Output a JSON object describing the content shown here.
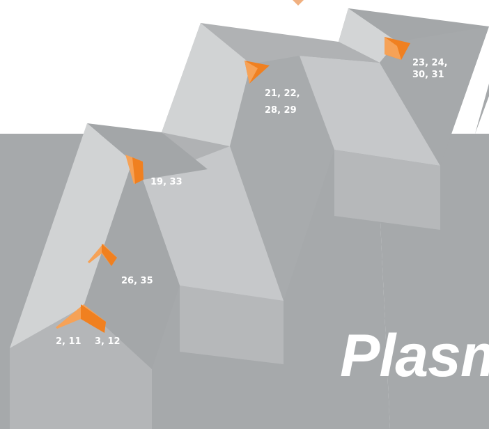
{
  "brand_text": "Plasm",
  "markers": [
    {
      "id": "m-2-11",
      "lines": [
        "2, 11"
      ]
    },
    {
      "id": "m-3-12",
      "lines": [
        "3, 12"
      ]
    },
    {
      "id": "m-26-35",
      "lines": [
        "26, 35"
      ]
    },
    {
      "id": "m-19-33",
      "lines": [
        "19, 33"
      ]
    },
    {
      "id": "m-21-22-28-29",
      "lines": [
        "21, 22,",
        "28, 29"
      ]
    },
    {
      "id": "m-23-24-30-31",
      "lines": [
        "23, 24,",
        "30, 31"
      ]
    }
  ],
  "colors": {
    "background": "#a6a9ab",
    "white": "#ffffff",
    "face_light": "#cbcdcf",
    "face_mid": "#b9bbbd",
    "face_top": "#afb1b3",
    "face_dark": "#9c9fa1",
    "accent_orange": "#f08020",
    "accent_orange_light": "#f6a257"
  }
}
